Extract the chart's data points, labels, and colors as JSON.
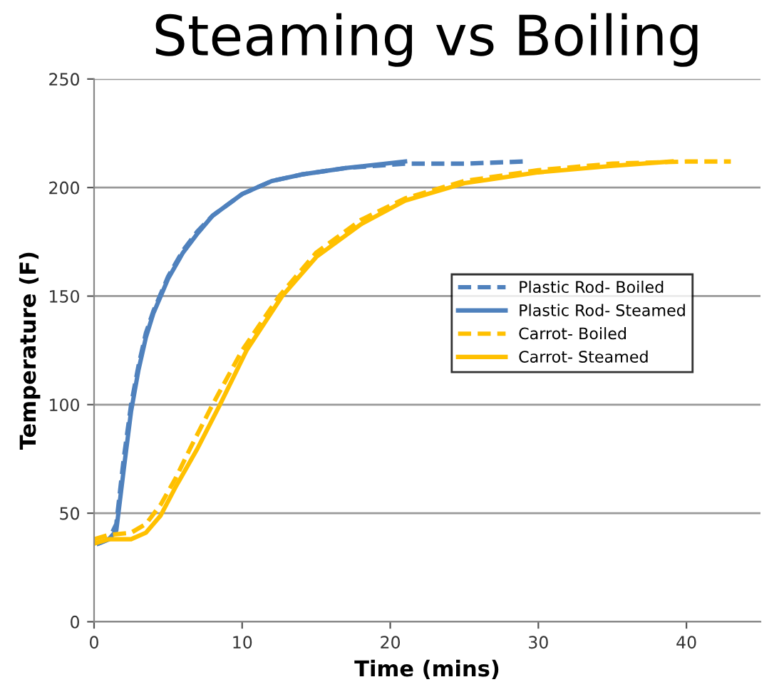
{
  "chart_data": {
    "type": "line",
    "title": "Steaming vs Boiling",
    "xlabel": "Time (mins)",
    "ylabel": "Temperature (F)",
    "xlim": [
      0,
      45
    ],
    "xticks": [
      0,
      10,
      20,
      30,
      40
    ],
    "ylim": [
      0,
      250
    ],
    "yticks": [
      0,
      50,
      100,
      150,
      200,
      250
    ],
    "grid": "y",
    "legend": "right",
    "series": [
      {
        "name": "Plastic Rod- Boiled",
        "color": "#4f81bd",
        "line_style": "dashed",
        "x": [
          0.3,
          1,
          1.5,
          2,
          2.5,
          3,
          3.5,
          4,
          4.5,
          5,
          6,
          7,
          8,
          10,
          12,
          14,
          17,
          21,
          25,
          29
        ],
        "values": [
          36,
          38,
          45,
          75,
          100,
          118,
          133,
          143,
          151,
          159,
          171,
          180,
          187,
          197,
          203,
          206,
          209,
          211,
          211,
          212
        ]
      },
      {
        "name": "Plastic Rod- Steamed",
        "color": "#4f81bd",
        "line_style": "solid",
        "x": [
          0.3,
          1,
          1.5,
          2,
          2.5,
          3,
          3.5,
          4,
          4.5,
          5,
          6,
          7,
          8,
          10,
          12,
          14,
          17,
          21
        ],
        "values": [
          36,
          38,
          42,
          70,
          97,
          116,
          131,
          142,
          150,
          158,
          170,
          179,
          187,
          197,
          203,
          206,
          209,
          212
        ]
      },
      {
        "name": "Carrot- Boiled",
        "color": "#ffc000",
        "line_style": "dashed",
        "x": [
          0,
          1,
          2.5,
          3.5,
          4.5,
          5.5,
          6.5,
          8,
          10,
          12.5,
          15,
          18,
          21,
          25,
          30,
          35,
          40,
          43
        ],
        "values": [
          38,
          40,
          41,
          45,
          54,
          66,
          80,
          100,
          125,
          150,
          170,
          185,
          195,
          203,
          208,
          211,
          212,
          212
        ]
      },
      {
        "name": "Carrot- Steamed",
        "color": "#ffc000",
        "line_style": "solid",
        "x": [
          0,
          1,
          2.5,
          3.5,
          4.5,
          5.5,
          7,
          8.5,
          10.3,
          12.7,
          15,
          18,
          21,
          25,
          30,
          35,
          39
        ],
        "values": [
          36,
          38,
          38,
          41,
          49,
          62,
          80,
          100,
          125,
          150,
          168,
          183,
          194,
          202,
          207,
          210,
          212
        ]
      }
    ]
  }
}
